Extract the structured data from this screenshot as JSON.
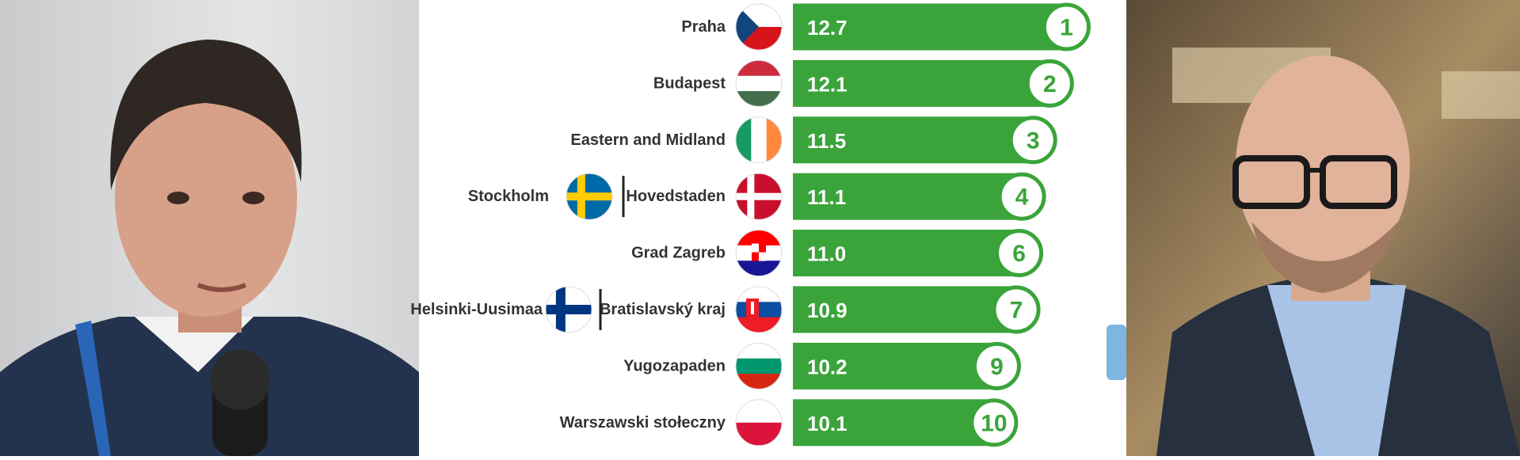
{
  "chart_data": {
    "type": "bar",
    "orientation": "horizontal",
    "categories": [
      "Praha",
      "Budapest",
      "Eastern and Midland",
      "Hovedstaden",
      "Grad Zagreb",
      "Bratislavský kraj",
      "Yugozapaden",
      "Warszawski stołeczny"
    ],
    "second_categories": [
      null,
      null,
      null,
      "Stockholm",
      null,
      "Helsinki-Uusimaa",
      null,
      null
    ],
    "values": [
      12.7,
      12.1,
      11.5,
      11.1,
      11.0,
      10.9,
      10.2,
      10.1
    ],
    "value_labels": [
      "12.7",
      "12.1",
      "11.5",
      "11.1",
      "11.0",
      "10.9",
      "10.2",
      "10.1"
    ],
    "ranks": [
      1,
      2,
      3,
      4,
      6,
      7,
      9,
      10
    ],
    "color": "#3aa43a",
    "xlim": [
      3,
      13
    ]
  }
}
